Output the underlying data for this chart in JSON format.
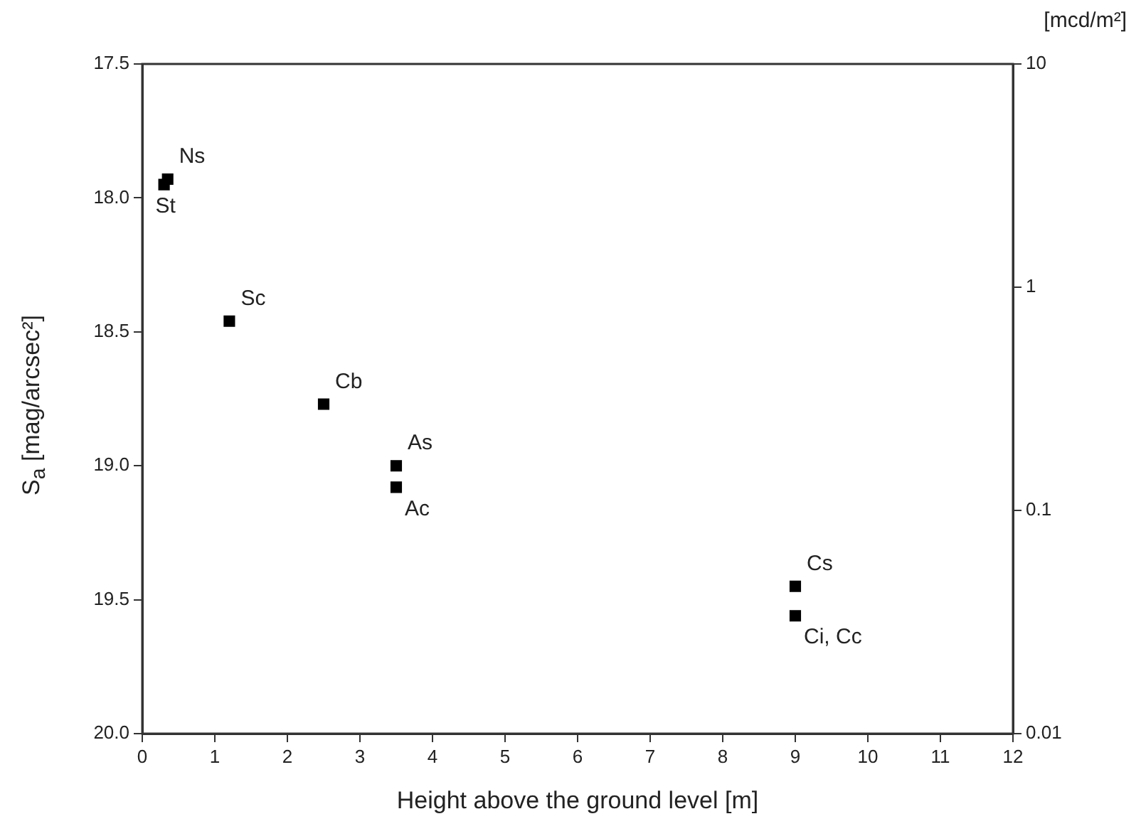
{
  "chart_data": {
    "type": "scatter",
    "xlabel": "Height above the ground level [m]",
    "ylabel": "S$_{a}$ [mag/arcsec²]",
    "y2label": "[mcd/m²]",
    "series": [
      {
        "color": "#000000",
        "x": [
          0.3,
          0.35,
          1.2,
          2.5,
          3.5,
          3.5,
          9.0,
          9.0
        ],
        "values": [
          17.95,
          17.93,
          18.46,
          18.77,
          19.0,
          19.08,
          19.45,
          19.56
        ]
      }
    ],
    "xlim": [
      0,
      12
    ],
    "xticks": [
      0,
      1,
      2,
      3,
      4,
      5,
      6,
      7,
      8,
      9,
      10,
      11,
      12
    ],
    "ylim": [
      20.0,
      17.5
    ],
    "yticks": [
      {
        "value": 17.5,
        "label": "17.5"
      },
      {
        "value": 18.0,
        "label": "18.0"
      },
      {
        "value": 18.5,
        "label": "18.5"
      },
      {
        "value": 19.0,
        "label": "19.0"
      },
      {
        "value": 19.5,
        "label": "19.5"
      },
      {
        "value": 20.0,
        "label": "20.0"
      }
    ],
    "y2lim": [
      0.01,
      10
    ],
    "y2ticks": [
      0.01,
      0.1,
      1,
      10
    ],
    "log": "y2",
    "annotations": [
      {
        "text": "St",
        "x": 0.3,
        "y": 17.95
      },
      {
        "text": "Ns",
        "x": 0.35,
        "y": 17.93
      },
      {
        "text": "Sc",
        "x": 1.2,
        "y": 18.46
      },
      {
        "text": "Cb",
        "x": 2.5,
        "y": 18.77
      },
      {
        "text": "As",
        "x": 3.5,
        "y": 19.0
      },
      {
        "text": "Ac",
        "x": 3.5,
        "y": 19.08
      },
      {
        "text": "Cs",
        "x": 9.0,
        "y": 19.45
      },
      {
        "text": "Ci, Cc",
        "x": 9.0,
        "y": 19.56
      }
    ],
    "grid": false,
    "legend": false,
    "marker": "square"
  }
}
